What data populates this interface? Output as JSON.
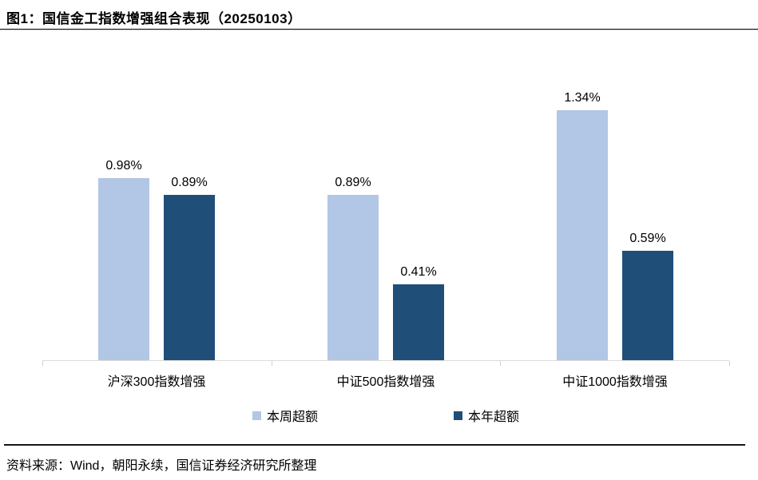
{
  "figure": {
    "title": "图1：国信金工指数增强组合表现（20250103）",
    "source": "资料来源：Wind，朝阳永续，国信证券经济研究所整理"
  },
  "colors": {
    "series_week": "#b2c6e6",
    "series_year": "#1f4e79",
    "axis": "#dcdcdc",
    "rule": "#141414",
    "text": "#000000",
    "background": "#ffffff"
  },
  "legend": [
    {
      "label": "本周超额",
      "color": "#b2c6e6"
    },
    {
      "label": "本年超额",
      "color": "#1f4e79"
    }
  ],
  "chart_data": {
    "type": "bar",
    "title": "图1：国信金工指数增强组合表现（20250103）",
    "categories": [
      "沪深300指数增强",
      "中证500指数增强",
      "中证1000指数增强"
    ],
    "series": [
      {
        "name": "本周超额",
        "color": "#b2c6e6",
        "values": [
          0.98,
          0.89,
          1.34
        ],
        "labels": [
          "0.98%",
          "0.89%",
          "1.34%"
        ]
      },
      {
        "name": "本年超额",
        "color": "#1f4e79",
        "values": [
          0.89,
          0.41,
          0.59
        ],
        "labels": [
          "0.89%",
          "0.41%",
          "0.59%"
        ]
      }
    ],
    "unit": "%",
    "xlabel": "",
    "ylabel": "",
    "ylim": [
      0,
      1.6
    ],
    "grid": false,
    "y_axis_visible": false,
    "value_labels_visible": true,
    "legend_position": "bottom"
  }
}
